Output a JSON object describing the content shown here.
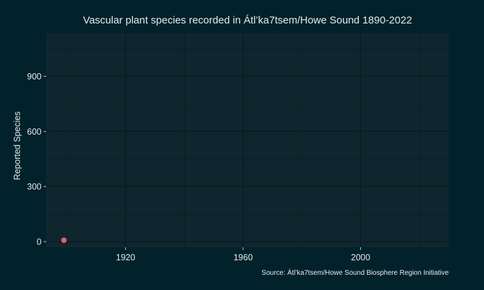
{
  "chart_data": {
    "type": "scatter",
    "title": "Vascular plant species recorded in Átl’ka7tsem/Howe Sound 1890-2022",
    "xlabel": "",
    "ylabel": "Reported Species",
    "caption": "Source: Átl’ka7tsem/Howe Sound Biosphere Region Initiative",
    "xlim": [
      1893,
      2030
    ],
    "ylim": [
      -30,
      1135
    ],
    "x_ticks": [
      1920,
      1960,
      2000
    ],
    "y_ticks": [
      0,
      300,
      600,
      900
    ],
    "x_minor": [
      1900,
      1940,
      1980,
      2020
    ],
    "y_minor": [
      150,
      450,
      750,
      1050
    ],
    "grid": true,
    "points": [
      {
        "x": 1899,
        "y": 8
      }
    ],
    "colors": {
      "background": "#02222b",
      "panel": "#10262e",
      "grid": "#091c23",
      "point": "#e85c61",
      "text": "#e4eaec"
    }
  }
}
